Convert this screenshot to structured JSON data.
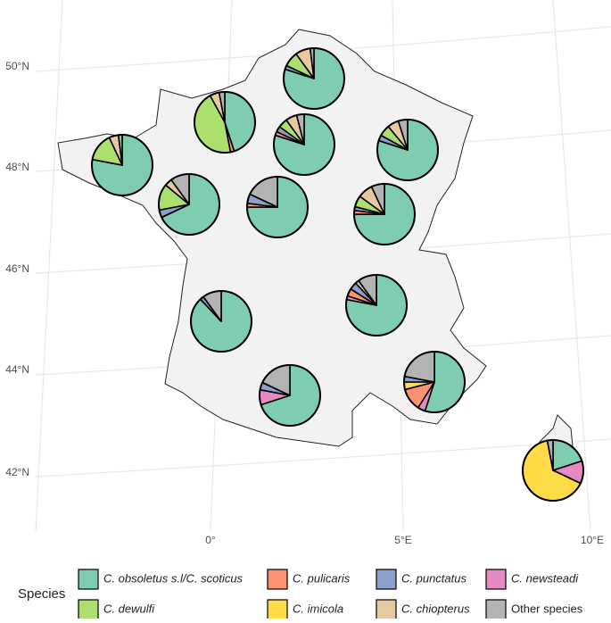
{
  "chart_data": {
    "type": "pie",
    "legend_title": "Species",
    "species": [
      {
        "name": "C. obsoletus s.l/C. scoticus",
        "color": "#7fcdb0"
      },
      {
        "name": "C. pulicaris",
        "color": "#fc9272"
      },
      {
        "name": "C. punctatus",
        "color": "#8da0cb"
      },
      {
        "name": "C. newsteadi",
        "color": "#e78ac3"
      },
      {
        "name": "C. dewulfi",
        "color": "#addf6e"
      },
      {
        "name": "C. imicola",
        "color": "#fedc47"
      },
      {
        "name": "C. chiopterus",
        "color": "#e6c9a0"
      },
      {
        "name": "Other species",
        "color": "#b3b3b3"
      }
    ],
    "lat_labels": [
      "50°N",
      "48°N",
      "46°N",
      "44°N",
      "42°N"
    ],
    "lon_labels": [
      "0°",
      "5°E",
      "10°E"
    ],
    "pies": [
      {
        "values": [
          80,
          0,
          2,
          0,
          8,
          0,
          8,
          2
        ]
      },
      {
        "values": [
          45,
          2,
          0,
          0,
          45,
          0,
          5,
          3
        ]
      },
      {
        "values": [
          78,
          0,
          0,
          0,
          15,
          0,
          5,
          2
        ]
      },
      {
        "values": [
          80,
          2,
          3,
          0,
          5,
          0,
          6,
          4
        ]
      },
      {
        "values": [
          80,
          0,
          3,
          0,
          6,
          0,
          6,
          5
        ]
      },
      {
        "values": [
          68,
          0,
          4,
          0,
          14,
          0,
          4,
          10
        ]
      },
      {
        "values": [
          75,
          2,
          5,
          0,
          0,
          0,
          0,
          18
        ]
      },
      {
        "values": [
          75,
          2,
          2,
          0,
          6,
          0,
          8,
          7
        ]
      },
      {
        "values": [
          88,
          0,
          2,
          0,
          0,
          0,
          0,
          10
        ]
      },
      {
        "values": [
          78,
          4,
          4,
          2,
          0,
          0,
          2,
          10
        ]
      },
      {
        "values": [
          70,
          0,
          4,
          8,
          0,
          0,
          0,
          18
        ]
      },
      {
        "values": [
          55,
          12,
          3,
          4,
          0,
          4,
          0,
          22
        ]
      },
      {
        "values": [
          20,
          0,
          0,
          12,
          0,
          65,
          0,
          3
        ]
      }
    ]
  }
}
